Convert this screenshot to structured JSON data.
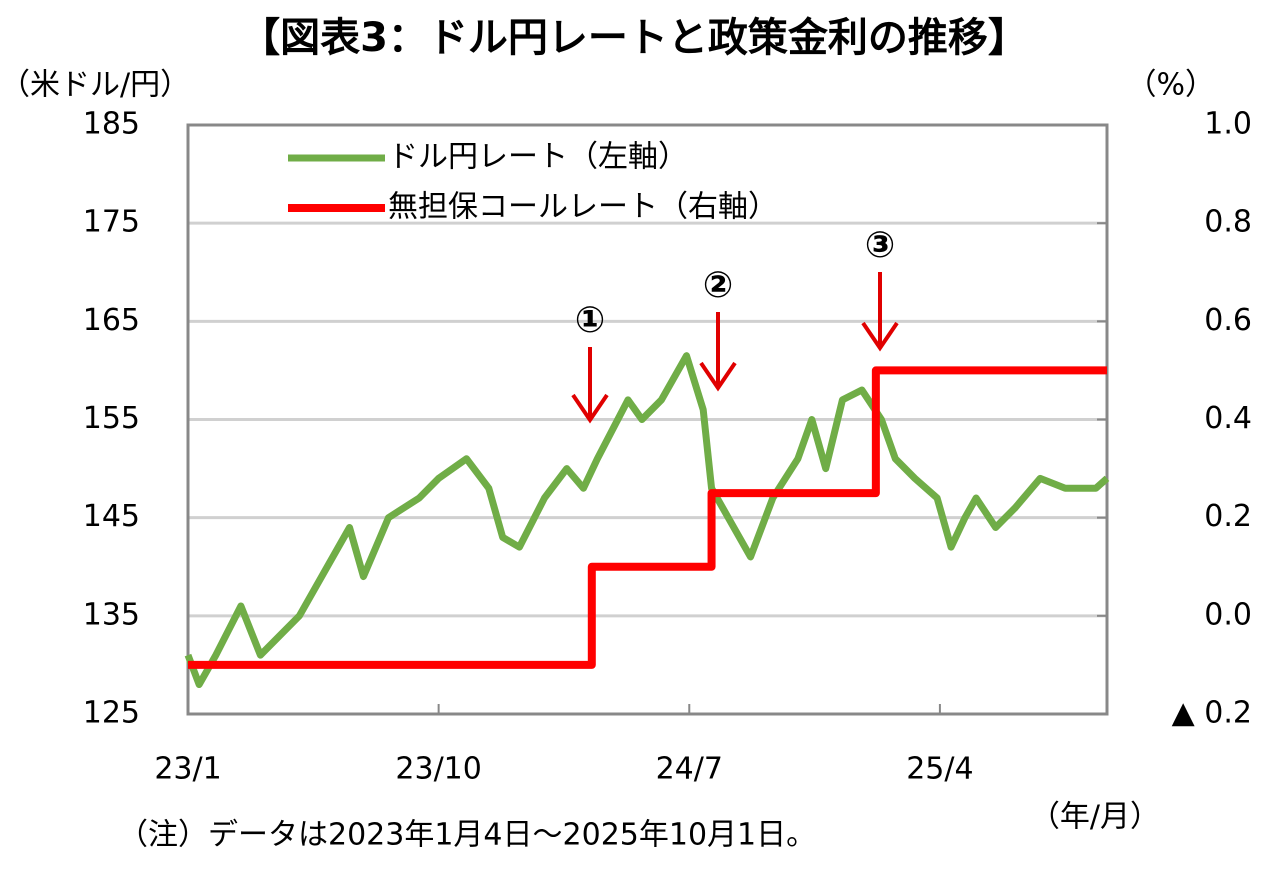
{
  "chart_data": {
    "type": "line",
    "title": "【図表3：ドル円レートと政策金利の推移】",
    "ylabel": "（米ドル/円）",
    "y2label": "（%）",
    "xlabel": "（年/月）",
    "note": "（注）データは2023年1月4日～2025年10月1日。",
    "annotations": [
      "①",
      "②",
      "③"
    ],
    "xlim": [
      0,
      33
    ],
    "xticks": [
      {
        "value": 0,
        "label": "23/1"
      },
      {
        "value": 9,
        "label": "23/10"
      },
      {
        "value": 18,
        "label": "24/7"
      },
      {
        "value": 27,
        "label": "25/4"
      }
    ],
    "ylim": [
      125,
      185
    ],
    "yticks": [
      125,
      135,
      145,
      155,
      165,
      175,
      185
    ],
    "y2lim": [
      -0.2,
      1.0
    ],
    "y2ticks": [
      {
        "value": -0.2,
        "label": "▲ 0.2"
      },
      {
        "value": 0,
        "label": "0.0"
      },
      0.2,
      0.4,
      0.6,
      0.8,
      {
        "value": 1.0,
        "label": "1.0"
      }
    ],
    "grid": true,
    "legend": "upper left",
    "series": [
      {
        "name": "ドル円レート（左軸）",
        "color": "#70ad47",
        "x": [
          0,
          0.4,
          1.0,
          1.9,
          2.6,
          4,
          5,
          5.8,
          6.3,
          7.2,
          8.3,
          9,
          10,
          10.8,
          11.3,
          11.9,
          12.8,
          13.6,
          14.2,
          14.7,
          15.8,
          16.3,
          17,
          17.9,
          18.5,
          18.8,
          19.4,
          20.2,
          21,
          21.9,
          22.4,
          22.9,
          23.5,
          24.2,
          24.9,
          25.4,
          26.1,
          26.9,
          27.4,
          27.9,
          28.3,
          29,
          29.7,
          30.6,
          31.5,
          32.6,
          33
        ],
        "values": [
          131,
          128,
          131,
          136,
          131,
          135,
          140,
          144,
          139,
          145,
          147,
          149,
          151,
          148,
          143,
          142,
          147,
          150,
          148,
          151,
          157,
          155,
          157,
          161.5,
          156,
          148,
          145,
          141,
          147,
          151,
          155,
          150,
          157,
          158,
          155,
          151,
          149,
          147,
          142,
          145,
          147,
          144,
          146,
          149,
          148,
          148,
          149
        ]
      },
      {
        "name": "無担保コールレート（右軸）",
        "color": "#ff0000",
        "axis": "y2",
        "x": [
          0,
          14.5,
          14.5,
          18.8,
          18.8,
          24.7,
          24.7,
          33
        ],
        "values": [
          -0.1,
          -0.1,
          0.1,
          0.1,
          0.25,
          0.25,
          0.5,
          0.5
        ]
      }
    ]
  }
}
